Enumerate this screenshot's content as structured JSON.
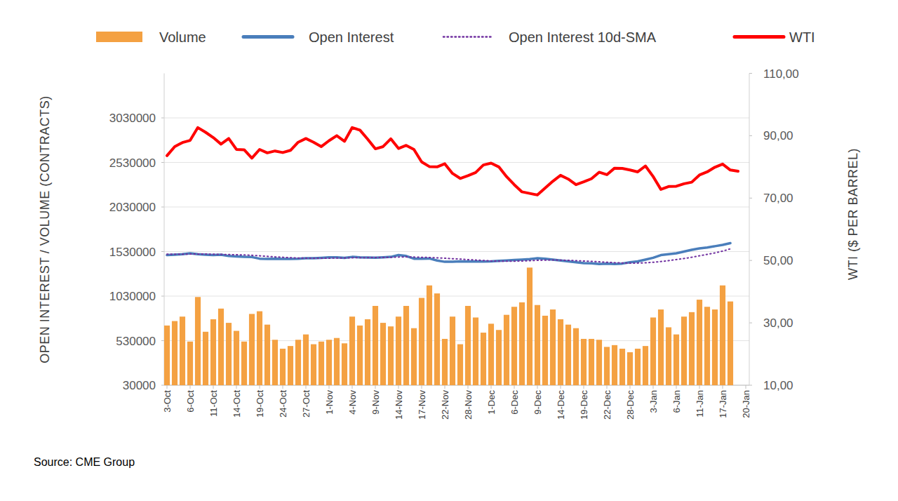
{
  "chart_data": {
    "type": "combo",
    "y_label": "OPEN INTEREST / VOLUME (CONTRACTS)",
    "y2_label": "WTI ($ PER BARREL)",
    "source": "Source: CME Group",
    "legend": "top",
    "grid": true,
    "categories": [
      "3-Oct",
      null,
      null,
      "6-Oct",
      null,
      null,
      "11-Oct",
      null,
      null,
      "14-Oct",
      null,
      null,
      "19-Oct",
      null,
      null,
      "24-Oct",
      null,
      null,
      "27-Oct",
      null,
      null,
      "1-Nov",
      null,
      null,
      "4-Nov",
      null,
      null,
      "9-Nov",
      null,
      null,
      "14-Nov",
      null,
      null,
      "17-Nov",
      null,
      null,
      "22-Nov",
      null,
      null,
      "28-Nov",
      null,
      null,
      "1-Dec",
      null,
      null,
      "6-Dec",
      null,
      null,
      "9-Dec",
      null,
      null,
      "14-Dec",
      null,
      null,
      "19-Dec",
      null,
      null,
      "22-Dec",
      null,
      null,
      "28-Dec",
      null,
      null,
      "3-Jan",
      null,
      null,
      "6-Jan",
      null,
      null,
      "11-Jan",
      null,
      null,
      "17-Jan",
      null,
      null,
      "20-Jan"
    ],
    "ylim": [
      30000,
      3530000
    ],
    "yticks": [
      30000,
      530000,
      1030000,
      1530000,
      2030000,
      2530000,
      3030000
    ],
    "y2lim": [
      10,
      110
    ],
    "y2ticks": [
      {
        "value": 10,
        "label": "10,00"
      },
      {
        "value": 30,
        "label": "30,00"
      },
      {
        "value": 50,
        "label": "50,00"
      },
      {
        "value": 70,
        "label": "70,00"
      },
      {
        "value": 90,
        "label": "90,00"
      },
      {
        "value": 110,
        "label": "110,00"
      }
    ],
    "series": [
      {
        "name": "Volume",
        "type": "bar",
        "color": "#f4a142",
        "values": [
          700000,
          750000,
          800000,
          520000,
          1020000,
          630000,
          770000,
          890000,
          730000,
          640000,
          520000,
          830000,
          860000,
          710000,
          540000,
          440000,
          470000,
          540000,
          600000,
          490000,
          520000,
          540000,
          560000,
          500000,
          800000,
          700000,
          770000,
          920000,
          730000,
          690000,
          800000,
          920000,
          670000,
          1010000,
          1150000,
          1060000,
          550000,
          800000,
          490000,
          920000,
          790000,
          620000,
          720000,
          650000,
          820000,
          910000,
          960000,
          1350000,
          930000,
          810000,
          880000,
          770000,
          710000,
          670000,
          550000,
          550000,
          540000,
          460000,
          480000,
          440000,
          400000,
          440000,
          470000,
          790000,
          880000,
          680000,
          600000,
          800000,
          850000,
          990000,
          910000,
          880000,
          1150000,
          970000,
          null,
          null
        ]
      },
      {
        "name": "Open Interest",
        "type": "line",
        "color": "#4a7ebb",
        "line_style": "solid",
        "values": [
          1490000,
          1495000,
          1500000,
          1510000,
          1500000,
          1495000,
          1490000,
          1495000,
          1480000,
          1475000,
          1470000,
          1468000,
          1450000,
          1448000,
          1450000,
          1447000,
          1448000,
          1450000,
          1455000,
          1455000,
          1460000,
          1465000,
          1465000,
          1460000,
          1470000,
          1465000,
          1463000,
          1462000,
          1465000,
          1470000,
          1490000,
          1480000,
          1450000,
          1450000,
          1452000,
          1430000,
          1415000,
          1415000,
          1420000,
          1418000,
          1418000,
          1418000,
          1420000,
          1425000,
          1430000,
          1435000,
          1440000,
          1445000,
          1455000,
          1450000,
          1440000,
          1430000,
          1420000,
          1410000,
          1400000,
          1398000,
          1390000,
          1395000,
          1390000,
          1395000,
          1410000,
          1420000,
          1440000,
          1460000,
          1490000,
          1500000,
          1510000,
          1530000,
          1550000,
          1565000,
          1575000,
          1590000,
          1605000,
          1625000,
          null,
          null
        ]
      },
      {
        "name": "Open Interest 10d-SMA",
        "type": "line",
        "color": "#7030a0",
        "line_style": "dotted",
        "values": [
          1500000,
          1500000,
          1500000,
          1502000,
          1502000,
          1502000,
          1500000,
          1498000,
          1496000,
          1494000,
          1492000,
          1488000,
          1482000,
          1476000,
          1470000,
          1466000,
          1462000,
          1458000,
          1456000,
          1455000,
          1455000,
          1456000,
          1457000,
          1458000,
          1460000,
          1461000,
          1462000,
          1463000,
          1464000,
          1465000,
          1468000,
          1470000,
          1468000,
          1466000,
          1464000,
          1460000,
          1455000,
          1450000,
          1445000,
          1440000,
          1435000,
          1430000,
          1425000,
          1422000,
          1421000,
          1422000,
          1424000,
          1427000,
          1431000,
          1434000,
          1435000,
          1434000,
          1431000,
          1428000,
          1424000,
          1420000,
          1415000,
          1410000,
          1405000,
          1402000,
          1400000,
          1401000,
          1404000,
          1410000,
          1418000,
          1428000,
          1440000,
          1452000,
          1466000,
          1482000,
          1498000,
          1515000,
          1535000,
          1560000,
          null,
          null
        ]
      },
      {
        "name": "WTI",
        "type": "line",
        "color": "#ff0000",
        "line_style": "solid",
        "axis": "y2",
        "values": [
          83.6,
          86.5,
          87.8,
          88.5,
          92.6,
          91.1,
          89.4,
          87.3,
          89.1,
          85.6,
          85.5,
          82.8,
          85.6,
          84.5,
          85.1,
          84.6,
          85.3,
          87.9,
          89.1,
          87.9,
          86.5,
          88.4,
          90.0,
          88.2,
          92.6,
          91.8,
          88.9,
          85.8,
          86.5,
          89.0,
          85.9,
          86.9,
          85.6,
          81.6,
          80.1,
          80.0,
          81.0,
          77.9,
          76.3,
          77.2,
          78.2,
          80.6,
          81.2,
          80.0,
          76.9,
          74.3,
          72.0,
          71.5,
          71.0,
          73.2,
          75.4,
          77.3,
          76.1,
          74.3,
          75.2,
          76.2,
          78.3,
          77.5,
          79.6,
          79.5,
          79.0,
          78.4,
          80.3,
          76.9,
          72.8,
          73.7,
          73.8,
          74.6,
          75.1,
          77.4,
          78.4,
          79.9,
          80.9,
          79.0,
          78.6,
          null
        ]
      }
    ]
  }
}
